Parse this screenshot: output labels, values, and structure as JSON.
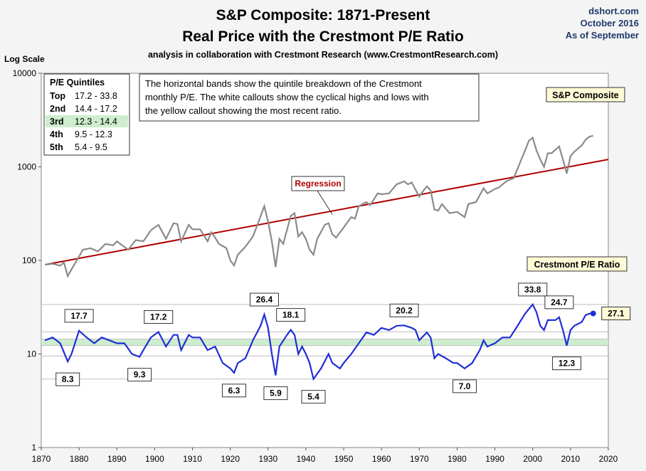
{
  "header": {
    "title_line1": "S&P Composite: 1871-Present",
    "title_line2": "Real Price with the Crestmont P/E Ratio",
    "subtitle": "analysis in collaboration with Crestmont Research (www.CrestmontResearch.com)",
    "source": "dshort.com",
    "date": "October 2016",
    "as_of": "As of September"
  },
  "chart_data": {
    "type": "line",
    "y_scale": "log",
    "ylabel": "Log Scale",
    "ylim": [
      1,
      10000
    ],
    "xlim": [
      1870,
      2020
    ],
    "x_ticks": [
      "1870",
      "1880",
      "1890",
      "1900",
      "1910",
      "1920",
      "1930",
      "1940",
      "1950",
      "1960",
      "1970",
      "1980",
      "1990",
      "2000",
      "2010",
      "2020"
    ],
    "y_ticks": [
      "1",
      "10",
      "100",
      "1000",
      "10000"
    ],
    "colors": {
      "sp": "#8a8a8a",
      "pe": "#1f2fd6",
      "regression": "#b00000",
      "band": "#cdeecd",
      "gridline": "#bfbfbf"
    },
    "sp_label": "S&P Composite",
    "pe_label": "Crestmont P/E Ratio",
    "regression_label": "Regression",
    "regression": {
      "start": [
        1871,
        90
      ],
      "end": [
        2020,
        1200
      ]
    },
    "series": [
      {
        "name": "S&P Composite",
        "points": [
          [
            1871,
            90
          ],
          [
            1873,
            92
          ],
          [
            1875,
            88
          ],
          [
            1876,
            95
          ],
          [
            1877,
            68
          ],
          [
            1878,
            80
          ],
          [
            1880,
            110
          ],
          [
            1881,
            130
          ],
          [
            1883,
            135
          ],
          [
            1885,
            125
          ],
          [
            1887,
            150
          ],
          [
            1889,
            145
          ],
          [
            1890,
            160
          ],
          [
            1893,
            130
          ],
          [
            1895,
            165
          ],
          [
            1897,
            160
          ],
          [
            1899,
            210
          ],
          [
            1901,
            240
          ],
          [
            1903,
            170
          ],
          [
            1905,
            250
          ],
          [
            1906,
            245
          ],
          [
            1907,
            160
          ],
          [
            1909,
            240
          ],
          [
            1910,
            215
          ],
          [
            1912,
            215
          ],
          [
            1914,
            160
          ],
          [
            1915,
            200
          ],
          [
            1916,
            175
          ],
          [
            1917,
            150
          ],
          [
            1919,
            135
          ],
          [
            1920,
            100
          ],
          [
            1921,
            88
          ],
          [
            1922,
            115
          ],
          [
            1924,
            140
          ],
          [
            1926,
            180
          ],
          [
            1927,
            230
          ],
          [
            1929,
            380
          ],
          [
            1930,
            260
          ],
          [
            1931,
            160
          ],
          [
            1932,
            85
          ],
          [
            1933,
            170
          ],
          [
            1934,
            150
          ],
          [
            1936,
            300
          ],
          [
            1937,
            320
          ],
          [
            1938,
            180
          ],
          [
            1939,
            200
          ],
          [
            1940,
            170
          ],
          [
            1941,
            130
          ],
          [
            1942,
            115
          ],
          [
            1943,
            170
          ],
          [
            1945,
            240
          ],
          [
            1946,
            250
          ],
          [
            1947,
            190
          ],
          [
            1948,
            175
          ],
          [
            1950,
            225
          ],
          [
            1952,
            290
          ],
          [
            1953,
            280
          ],
          [
            1954,
            380
          ],
          [
            1956,
            420
          ],
          [
            1957,
            390
          ],
          [
            1959,
            520
          ],
          [
            1960,
            510
          ],
          [
            1962,
            520
          ],
          [
            1964,
            650
          ],
          [
            1966,
            700
          ],
          [
            1967,
            650
          ],
          [
            1968,
            680
          ],
          [
            1970,
            480
          ],
          [
            1971,
            550
          ],
          [
            1972,
            620
          ],
          [
            1973,
            560
          ],
          [
            1974,
            350
          ],
          [
            1975,
            340
          ],
          [
            1976,
            400
          ],
          [
            1978,
            320
          ],
          [
            1980,
            330
          ],
          [
            1982,
            290
          ],
          [
            1983,
            400
          ],
          [
            1985,
            420
          ],
          [
            1987,
            590
          ],
          [
            1988,
            520
          ],
          [
            1990,
            580
          ],
          [
            1991,
            600
          ],
          [
            1993,
            700
          ],
          [
            1995,
            760
          ],
          [
            1997,
            1200
          ],
          [
            1998,
            1500
          ],
          [
            1999,
            1900
          ],
          [
            2000,
            2050
          ],
          [
            2001,
            1500
          ],
          [
            2002,
            1200
          ],
          [
            2003,
            1000
          ],
          [
            2004,
            1400
          ],
          [
            2005,
            1400
          ],
          [
            2007,
            1650
          ],
          [
            2008,
            1200
          ],
          [
            2009,
            850
          ],
          [
            2010,
            1300
          ],
          [
            2011,
            1450
          ],
          [
            2013,
            1700
          ],
          [
            2014,
            1950
          ],
          [
            2015,
            2100
          ],
          [
            2016,
            2150
          ]
        ]
      },
      {
        "name": "Crestmont P/E Ratio",
        "points": [
          [
            1871,
            14
          ],
          [
            1873,
            15
          ],
          [
            1875,
            13
          ],
          [
            1877,
            8.3
          ],
          [
            1878,
            10
          ],
          [
            1880,
            17.7
          ],
          [
            1882,
            15
          ],
          [
            1884,
            13
          ],
          [
            1886,
            15
          ],
          [
            1888,
            14
          ],
          [
            1890,
            13
          ],
          [
            1892,
            13
          ],
          [
            1894,
            10
          ],
          [
            1896,
            9.3
          ],
          [
            1897,
            11
          ],
          [
            1899,
            15
          ],
          [
            1901,
            17.2
          ],
          [
            1903,
            12
          ],
          [
            1905,
            16
          ],
          [
            1906,
            16
          ],
          [
            1907,
            11
          ],
          [
            1909,
            16
          ],
          [
            1910,
            15
          ],
          [
            1912,
            15
          ],
          [
            1914,
            11
          ],
          [
            1916,
            12
          ],
          [
            1918,
            8
          ],
          [
            1920,
            7
          ],
          [
            1921,
            6.3
          ],
          [
            1922,
            8
          ],
          [
            1924,
            9
          ],
          [
            1926,
            14
          ],
          [
            1928,
            20
          ],
          [
            1929,
            26.4
          ],
          [
            1930,
            19
          ],
          [
            1931,
            10
          ],
          [
            1932,
            5.9
          ],
          [
            1933,
            12
          ],
          [
            1935,
            16
          ],
          [
            1936,
            18.1
          ],
          [
            1937,
            16
          ],
          [
            1938,
            10
          ],
          [
            1939,
            12
          ],
          [
            1940,
            10
          ],
          [
            1941,
            8
          ],
          [
            1942,
            5.4
          ],
          [
            1944,
            7
          ],
          [
            1946,
            10
          ],
          [
            1947,
            8
          ],
          [
            1949,
            7
          ],
          [
            1950,
            8
          ],
          [
            1952,
            10
          ],
          [
            1954,
            13
          ],
          [
            1956,
            17
          ],
          [
            1958,
            16
          ],
          [
            1960,
            19
          ],
          [
            1962,
            18
          ],
          [
            1964,
            20
          ],
          [
            1966,
            20.2
          ],
          [
            1968,
            19
          ],
          [
            1969,
            18
          ],
          [
            1970,
            14
          ],
          [
            1972,
            17
          ],
          [
            1973,
            15
          ],
          [
            1974,
            9
          ],
          [
            1975,
            10
          ],
          [
            1977,
            9
          ],
          [
            1979,
            8
          ],
          [
            1980,
            8
          ],
          [
            1982,
            7.0
          ],
          [
            1984,
            8
          ],
          [
            1986,
            11
          ],
          [
            1987,
            14
          ],
          [
            1988,
            12
          ],
          [
            1990,
            13
          ],
          [
            1992,
            15
          ],
          [
            1994,
            15
          ],
          [
            1996,
            20
          ],
          [
            1998,
            27
          ],
          [
            2000,
            33.8
          ],
          [
            2001,
            28
          ],
          [
            2002,
            20
          ],
          [
            2003,
            18
          ],
          [
            2004,
            23
          ],
          [
            2006,
            23
          ],
          [
            2007,
            24.7
          ],
          [
            2008,
            18
          ],
          [
            2009,
            12.3
          ],
          [
            2010,
            18
          ],
          [
            2011,
            20
          ],
          [
            2013,
            22
          ],
          [
            2014,
            26
          ],
          [
            2015,
            27
          ],
          [
            2016,
            27.1
          ]
        ]
      }
    ],
    "quintiles": {
      "title": "P/E Quintiles",
      "rows": [
        {
          "name": "Top",
          "range": "17.2 - 33.8"
        },
        {
          "name": "2nd",
          "range": "14.4 - 17.2"
        },
        {
          "name": "3rd",
          "range": "12.3 - 14.4"
        },
        {
          "name": "4th",
          "range": "9.5 - 12.3"
        },
        {
          "name": "5th",
          "range": "5.4 - 9.5"
        }
      ],
      "band_edges": [
        5.4,
        9.5,
        12.3,
        14.4,
        17.2,
        33.8
      ]
    },
    "note": "The horizontal bands show the quintile breakdown of the Crestmont monthly P/E.  The white callouts show the cyclical highs and lows with the yellow callout showing the most recent ratio.",
    "callouts": [
      {
        "label": "17.7",
        "year": 1880,
        "value": 17.7,
        "pos": "above"
      },
      {
        "label": "8.3",
        "year": 1877,
        "value": 8.3,
        "pos": "below"
      },
      {
        "label": "9.3",
        "year": 1896,
        "value": 9.3,
        "pos": "below"
      },
      {
        "label": "17.2",
        "year": 1901,
        "value": 17.2,
        "pos": "above"
      },
      {
        "label": "6.3",
        "year": 1921,
        "value": 6.3,
        "pos": "below"
      },
      {
        "label": "26.4",
        "year": 1929,
        "value": 26.4,
        "pos": "above"
      },
      {
        "label": "5.9",
        "year": 1932,
        "value": 5.9,
        "pos": "below"
      },
      {
        "label": "18.1",
        "year": 1936,
        "value": 18.1,
        "pos": "above"
      },
      {
        "label": "5.4",
        "year": 1942,
        "value": 5.4,
        "pos": "below"
      },
      {
        "label": "20.2",
        "year": 1966,
        "value": 20.2,
        "pos": "above"
      },
      {
        "label": "7.0",
        "year": 1982,
        "value": 7.0,
        "pos": "below"
      },
      {
        "label": "33.8",
        "year": 2000,
        "value": 33.8,
        "pos": "above"
      },
      {
        "label": "24.7",
        "year": 2007,
        "value": 24.7,
        "pos": "above"
      },
      {
        "label": "12.3",
        "year": 2009,
        "value": 12.3,
        "pos": "below"
      },
      {
        "label": "27.1",
        "year": 2016,
        "value": 27.1,
        "pos": "right",
        "current": true
      }
    ]
  }
}
